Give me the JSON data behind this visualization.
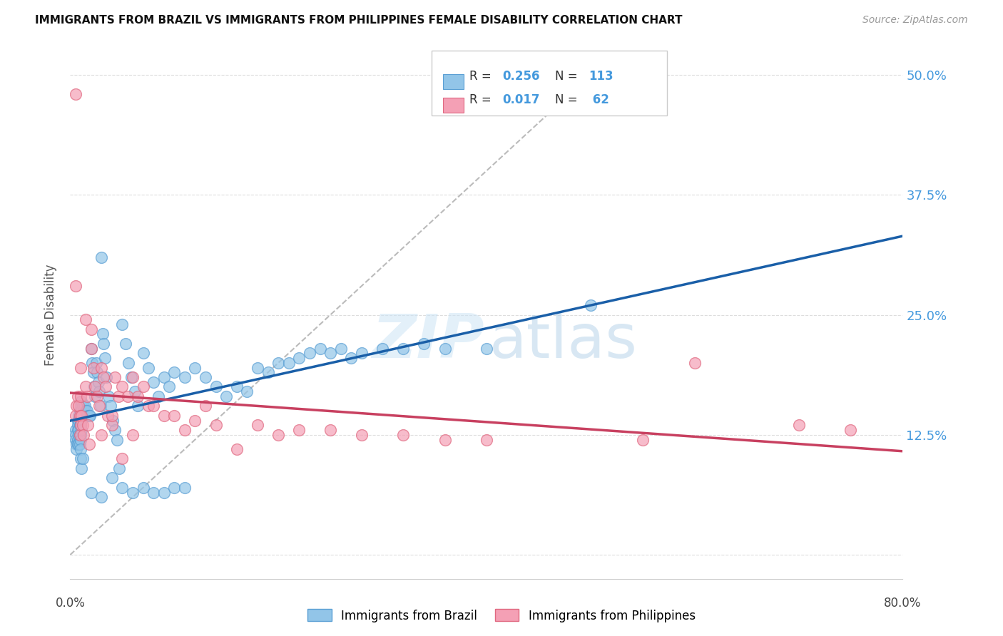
{
  "title": "IMMIGRANTS FROM BRAZIL VS IMMIGRANTS FROM PHILIPPINES FEMALE DISABILITY CORRELATION CHART",
  "source": "Source: ZipAtlas.com",
  "ylabel": "Female Disability",
  "xlim": [
    0.0,
    0.8
  ],
  "ylim": [
    -0.025,
    0.525
  ],
  "yticks": [
    0.0,
    0.125,
    0.25,
    0.375,
    0.5
  ],
  "ytick_labels": [
    "",
    "12.5%",
    "25.0%",
    "37.5%",
    "50.0%"
  ],
  "brazil_color": "#92c5e8",
  "philippines_color": "#f4a0b5",
  "brazil_edge": "#5a9fd4",
  "philippines_edge": "#e06880",
  "trendline_brazil_color": "#1a5fa8",
  "trendline_philippines_color": "#c84060",
  "axis_label_color": "#4499dd",
  "grid_color": "#dddddd",
  "legend_r1": "0.256",
  "legend_n1": "113",
  "legend_r2": "0.017",
  "legend_n2": " 62",
  "brazil_x": [
    0.005,
    0.005,
    0.005,
    0.006,
    0.006,
    0.007,
    0.007,
    0.007,
    0.007,
    0.007,
    0.008,
    0.008,
    0.008,
    0.008,
    0.008,
    0.009,
    0.009,
    0.009,
    0.009,
    0.009,
    0.01,
    0.01,
    0.01,
    0.01,
    0.01,
    0.01,
    0.01,
    0.01,
    0.01,
    0.01,
    0.011,
    0.011,
    0.011,
    0.011,
    0.011,
    0.012,
    0.012,
    0.012,
    0.013,
    0.014,
    0.015,
    0.016,
    0.017,
    0.018,
    0.019,
    0.02,
    0.021,
    0.022,
    0.023,
    0.024,
    0.025,
    0.026,
    0.027,
    0.028,
    0.029,
    0.03,
    0.031,
    0.032,
    0.033,
    0.035,
    0.037,
    0.039,
    0.041,
    0.043,
    0.045,
    0.047,
    0.05,
    0.053,
    0.056,
    0.059,
    0.062,
    0.065,
    0.07,
    0.075,
    0.08,
    0.085,
    0.09,
    0.095,
    0.1,
    0.11,
    0.12,
    0.13,
    0.14,
    0.15,
    0.16,
    0.17,
    0.18,
    0.19,
    0.2,
    0.21,
    0.22,
    0.23,
    0.24,
    0.25,
    0.26,
    0.27,
    0.28,
    0.3,
    0.32,
    0.34,
    0.36,
    0.4,
    0.5,
    0.02,
    0.03,
    0.04,
    0.05,
    0.06,
    0.07,
    0.08,
    0.09,
    0.1,
    0.11
  ],
  "brazil_y": [
    0.13,
    0.125,
    0.12,
    0.115,
    0.11,
    0.14,
    0.135,
    0.13,
    0.12,
    0.115,
    0.145,
    0.14,
    0.13,
    0.125,
    0.115,
    0.15,
    0.145,
    0.135,
    0.125,
    0.115,
    0.16,
    0.155,
    0.15,
    0.145,
    0.14,
    0.135,
    0.125,
    0.12,
    0.11,
    0.1,
    0.16,
    0.15,
    0.14,
    0.13,
    0.09,
    0.155,
    0.145,
    0.1,
    0.155,
    0.155,
    0.15,
    0.15,
    0.145,
    0.145,
    0.145,
    0.215,
    0.2,
    0.19,
    0.175,
    0.165,
    0.2,
    0.19,
    0.18,
    0.17,
    0.155,
    0.31,
    0.23,
    0.22,
    0.205,
    0.185,
    0.165,
    0.155,
    0.14,
    0.13,
    0.12,
    0.09,
    0.24,
    0.22,
    0.2,
    0.185,
    0.17,
    0.155,
    0.21,
    0.195,
    0.18,
    0.165,
    0.185,
    0.175,
    0.19,
    0.185,
    0.195,
    0.185,
    0.175,
    0.165,
    0.175,
    0.17,
    0.195,
    0.19,
    0.2,
    0.2,
    0.205,
    0.21,
    0.215,
    0.21,
    0.215,
    0.205,
    0.21,
    0.215,
    0.215,
    0.22,
    0.215,
    0.215,
    0.26,
    0.065,
    0.06,
    0.08,
    0.07,
    0.065,
    0.07,
    0.065,
    0.065,
    0.07,
    0.07
  ],
  "phil_x": [
    0.005,
    0.005,
    0.006,
    0.007,
    0.008,
    0.009,
    0.009,
    0.01,
    0.01,
    0.011,
    0.012,
    0.013,
    0.015,
    0.016,
    0.017,
    0.018,
    0.02,
    0.022,
    0.024,
    0.026,
    0.028,
    0.03,
    0.032,
    0.034,
    0.036,
    0.04,
    0.043,
    0.046,
    0.05,
    0.055,
    0.06,
    0.065,
    0.07,
    0.075,
    0.08,
    0.09,
    0.1,
    0.11,
    0.12,
    0.13,
    0.14,
    0.16,
    0.18,
    0.2,
    0.22,
    0.25,
    0.28,
    0.32,
    0.36,
    0.4,
    0.55,
    0.6,
    0.7,
    0.75,
    0.005,
    0.01,
    0.015,
    0.02,
    0.03,
    0.04,
    0.05,
    0.06
  ],
  "phil_y": [
    0.48,
    0.145,
    0.155,
    0.165,
    0.155,
    0.145,
    0.125,
    0.165,
    0.135,
    0.145,
    0.135,
    0.125,
    0.175,
    0.165,
    0.135,
    0.115,
    0.215,
    0.195,
    0.175,
    0.165,
    0.155,
    0.195,
    0.185,
    0.175,
    0.145,
    0.135,
    0.185,
    0.165,
    0.175,
    0.165,
    0.185,
    0.165,
    0.175,
    0.155,
    0.155,
    0.145,
    0.145,
    0.13,
    0.14,
    0.155,
    0.135,
    0.11,
    0.135,
    0.125,
    0.13,
    0.13,
    0.125,
    0.125,
    0.12,
    0.12,
    0.12,
    0.2,
    0.135,
    0.13,
    0.28,
    0.195,
    0.245,
    0.235,
    0.125,
    0.145,
    0.1,
    0.125
  ]
}
